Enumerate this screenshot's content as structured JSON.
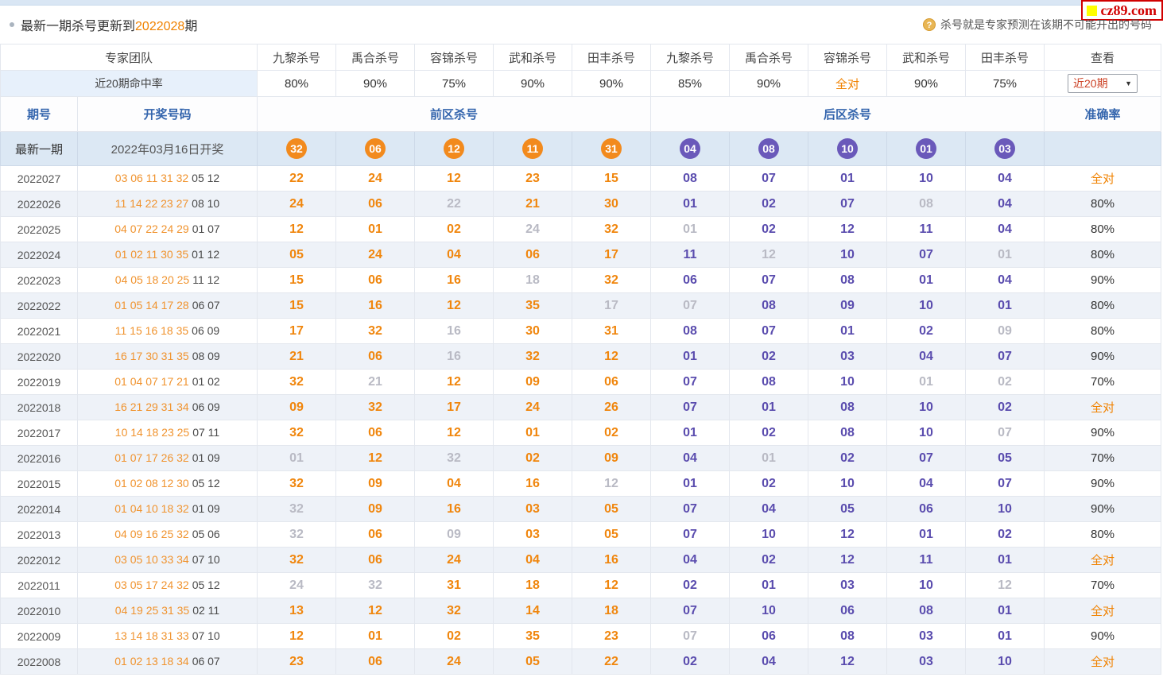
{
  "notice": {
    "prefix": "最新一期杀号更新到",
    "highlight": "2022028",
    "suffix": "期",
    "tip": "杀号就是专家预测在该期不可能开出的号码",
    "logo": "cz89.com"
  },
  "table": {
    "expert_header": "专家团队",
    "expert_cols": [
      "九黎杀号",
      "禹合杀号",
      "容锦杀号",
      "武和杀号",
      "田丰杀号",
      "九黎杀号",
      "禹合杀号",
      "容锦杀号",
      "武和杀号",
      "田丰杀号"
    ],
    "view_header": "查看",
    "hit_rate_label": "近20期命中率",
    "hit_rates": [
      "80%",
      "90%",
      "75%",
      "90%",
      "90%",
      "85%",
      "90%",
      "全对",
      "90%",
      "75%"
    ],
    "view_select": "近20期",
    "col_period": "期号",
    "col_draw": "开奖号码",
    "col_front": "前区杀号",
    "col_back": "后区杀号",
    "col_accuracy": "准确率",
    "latest": {
      "label": "最新一期",
      "draw_label": "2022年03月16日开奖",
      "front": [
        "32",
        "06",
        "12",
        "11",
        "31"
      ],
      "back": [
        "04",
        "08",
        "10",
        "01",
        "03"
      ]
    },
    "rows": [
      {
        "period": "2022027",
        "draw_front": "03 06 11 31 32",
        "draw_back": "05 12",
        "kills": [
          "22",
          "24",
          "12",
          "23",
          "15",
          "08",
          "07",
          "01",
          "10",
          "04"
        ],
        "miss": [],
        "accuracy": "全对"
      },
      {
        "period": "2022026",
        "draw_front": "11 14 22 23 27",
        "draw_back": "08 10",
        "kills": [
          "24",
          "06",
          "22",
          "21",
          "30",
          "01",
          "02",
          "07",
          "08",
          "04"
        ],
        "miss": [
          2,
          8
        ],
        "accuracy": "80%"
      },
      {
        "period": "2022025",
        "draw_front": "04 07 22 24 29",
        "draw_back": "01 07",
        "kills": [
          "12",
          "01",
          "02",
          "24",
          "32",
          "01",
          "02",
          "12",
          "11",
          "04"
        ],
        "miss": [
          3,
          5
        ],
        "accuracy": "80%"
      },
      {
        "period": "2022024",
        "draw_front": "01 02 11 30 35",
        "draw_back": "01 12",
        "kills": [
          "05",
          "24",
          "04",
          "06",
          "17",
          "11",
          "12",
          "10",
          "07",
          "01"
        ],
        "miss": [
          6,
          9
        ],
        "accuracy": "80%"
      },
      {
        "period": "2022023",
        "draw_front": "04 05 18 20 25",
        "draw_back": "11 12",
        "kills": [
          "15",
          "06",
          "16",
          "18",
          "32",
          "06",
          "07",
          "08",
          "01",
          "04"
        ],
        "miss": [
          3
        ],
        "accuracy": "90%"
      },
      {
        "period": "2022022",
        "draw_front": "01 05 14 17 28",
        "draw_back": "06 07",
        "kills": [
          "15",
          "16",
          "12",
          "35",
          "17",
          "07",
          "08",
          "09",
          "10",
          "01"
        ],
        "miss": [
          4,
          5
        ],
        "accuracy": "80%"
      },
      {
        "period": "2022021",
        "draw_front": "11 15 16 18 35",
        "draw_back": "06 09",
        "kills": [
          "17",
          "32",
          "16",
          "30",
          "31",
          "08",
          "07",
          "01",
          "02",
          "09"
        ],
        "miss": [
          2,
          9
        ],
        "accuracy": "80%"
      },
      {
        "period": "2022020",
        "draw_front": "16 17 30 31 35",
        "draw_back": "08 09",
        "kills": [
          "21",
          "06",
          "16",
          "32",
          "12",
          "01",
          "02",
          "03",
          "04",
          "07"
        ],
        "miss": [
          2
        ],
        "accuracy": "90%"
      },
      {
        "period": "2022019",
        "draw_front": "01 04 07 17 21",
        "draw_back": "01 02",
        "kills": [
          "32",
          "21",
          "12",
          "09",
          "06",
          "07",
          "08",
          "10",
          "01",
          "02"
        ],
        "miss": [
          1,
          8,
          9
        ],
        "accuracy": "70%"
      },
      {
        "period": "2022018",
        "draw_front": "16 21 29 31 34",
        "draw_back": "06 09",
        "kills": [
          "09",
          "32",
          "17",
          "24",
          "26",
          "07",
          "01",
          "08",
          "10",
          "02"
        ],
        "miss": [],
        "accuracy": "全对"
      },
      {
        "period": "2022017",
        "draw_front": "10 14 18 23 25",
        "draw_back": "07 11",
        "kills": [
          "32",
          "06",
          "12",
          "01",
          "02",
          "01",
          "02",
          "08",
          "10",
          "07"
        ],
        "miss": [
          9
        ],
        "accuracy": "90%"
      },
      {
        "period": "2022016",
        "draw_front": "01 07 17 26 32",
        "draw_back": "01 09",
        "kills": [
          "01",
          "12",
          "32",
          "02",
          "09",
          "04",
          "01",
          "02",
          "07",
          "05"
        ],
        "miss": [
          0,
          2,
          6
        ],
        "accuracy": "70%"
      },
      {
        "period": "2022015",
        "draw_front": "01 02 08 12 30",
        "draw_back": "05 12",
        "kills": [
          "32",
          "09",
          "04",
          "16",
          "12",
          "01",
          "02",
          "10",
          "04",
          "07"
        ],
        "miss": [
          4
        ],
        "accuracy": "90%"
      },
      {
        "period": "2022014",
        "draw_front": "01 04 10 18 32",
        "draw_back": "01 09",
        "kills": [
          "32",
          "09",
          "16",
          "03",
          "05",
          "07",
          "04",
          "05",
          "06",
          "10"
        ],
        "miss": [
          0
        ],
        "accuracy": "90%"
      },
      {
        "period": "2022013",
        "draw_front": "04 09 16 25 32",
        "draw_back": "05 06",
        "kills": [
          "32",
          "06",
          "09",
          "03",
          "05",
          "07",
          "10",
          "12",
          "01",
          "02"
        ],
        "miss": [
          0,
          2
        ],
        "accuracy": "80%"
      },
      {
        "period": "2022012",
        "draw_front": "03 05 10 33 34",
        "draw_back": "07 10",
        "kills": [
          "32",
          "06",
          "24",
          "04",
          "16",
          "04",
          "02",
          "12",
          "11",
          "01"
        ],
        "miss": [],
        "accuracy": "全对"
      },
      {
        "period": "2022011",
        "draw_front": "03 05 17 24 32",
        "draw_back": "05 12",
        "kills": [
          "24",
          "32",
          "31",
          "18",
          "12",
          "02",
          "01",
          "03",
          "10",
          "12"
        ],
        "miss": [
          0,
          1,
          9
        ],
        "accuracy": "70%"
      },
      {
        "period": "2022010",
        "draw_front": "04 19 25 31 35",
        "draw_back": "02 11",
        "kills": [
          "13",
          "12",
          "32",
          "14",
          "18",
          "07",
          "10",
          "06",
          "08",
          "01"
        ],
        "miss": [],
        "accuracy": "全对"
      },
      {
        "period": "2022009",
        "draw_front": "13 14 18 31 33",
        "draw_back": "07 10",
        "kills": [
          "12",
          "01",
          "02",
          "35",
          "23",
          "07",
          "06",
          "08",
          "03",
          "01"
        ],
        "miss": [
          5
        ],
        "accuracy": "90%"
      },
      {
        "period": "2022008",
        "draw_front": "01 02 13 18 34",
        "draw_back": "06 07",
        "kills": [
          "23",
          "06",
          "24",
          "05",
          "22",
          "02",
          "04",
          "12",
          "03",
          "10"
        ],
        "miss": [],
        "accuracy": "全对"
      }
    ]
  }
}
